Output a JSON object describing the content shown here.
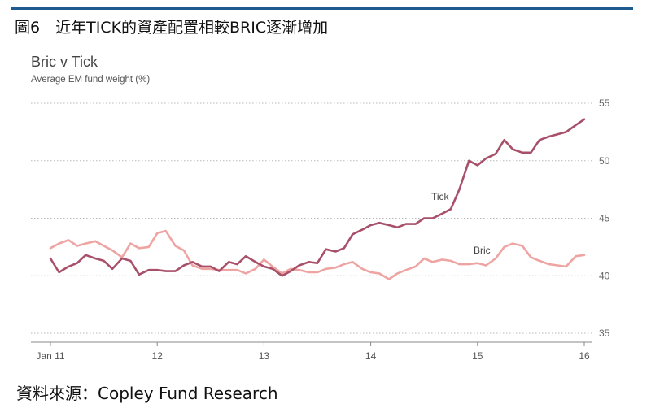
{
  "figure_title": "圖6　近年TICK的資產配置相較BRIC逐漸增加",
  "source": "資料來源：Copley Fund Research",
  "colors": {
    "rule": "#1f5a8f",
    "tick": "#a8506a",
    "bric": "#eea4a2",
    "grid": "#b8b8b8"
  },
  "chart_data": {
    "type": "line",
    "title": "Bric v Tick",
    "subtitle": "Average EM fund weight (%)",
    "xlabel": "",
    "ylabel": "",
    "x_ticks": [
      "Jan 11",
      "12",
      "13",
      "14",
      "15",
      "16"
    ],
    "y_ticks": [
      35,
      40,
      45,
      50,
      55
    ],
    "ylim": [
      35,
      55
    ],
    "xlim": [
      2011.0,
      2016.0
    ],
    "grid": true,
    "y_axis_position": "right",
    "series": [
      {
        "name": "Tick",
        "x": [
          2011.0,
          2011.08,
          2011.17,
          2011.25,
          2011.33,
          2011.42,
          2011.5,
          2011.58,
          2011.67,
          2011.75,
          2011.83,
          2011.92,
          2012.0,
          2012.08,
          2012.17,
          2012.25,
          2012.33,
          2012.42,
          2012.5,
          2012.58,
          2012.67,
          2012.75,
          2012.83,
          2012.92,
          2013.0,
          2013.08,
          2013.17,
          2013.25,
          2013.33,
          2013.42,
          2013.5,
          2013.58,
          2013.67,
          2013.75,
          2013.83,
          2013.92,
          2014.0,
          2014.08,
          2014.17,
          2014.25,
          2014.33,
          2014.42,
          2014.5,
          2014.58,
          2014.67,
          2014.75,
          2014.83,
          2014.92,
          2015.0,
          2015.08,
          2015.17,
          2015.25,
          2015.33,
          2015.42,
          2015.5,
          2015.58,
          2015.67,
          2015.75,
          2015.83,
          2015.92,
          2016.0
        ],
        "values": [
          41.5,
          40.3,
          40.8,
          41.1,
          41.8,
          41.5,
          41.3,
          40.6,
          41.5,
          41.3,
          40.1,
          40.5,
          40.5,
          40.4,
          40.4,
          40.9,
          41.2,
          40.8,
          40.8,
          40.4,
          41.2,
          41.0,
          41.7,
          41.2,
          40.8,
          40.6,
          40.0,
          40.4,
          40.9,
          41.2,
          41.1,
          42.3,
          42.1,
          42.4,
          43.6,
          44.0,
          44.4,
          44.6,
          44.4,
          44.2,
          44.5,
          44.5,
          45.0,
          45.0,
          45.4,
          45.8,
          47.5,
          50.0,
          49.6,
          50.2,
          50.6,
          51.8,
          51.0,
          50.7,
          50.7,
          51.8,
          52.1,
          52.3,
          52.5,
          53.1,
          53.6
        ]
      },
      {
        "name": "Bric",
        "x": [
          2011.0,
          2011.08,
          2011.17,
          2011.25,
          2011.33,
          2011.42,
          2011.5,
          2011.58,
          2011.67,
          2011.75,
          2011.83,
          2011.92,
          2012.0,
          2012.08,
          2012.17,
          2012.25,
          2012.33,
          2012.42,
          2012.5,
          2012.58,
          2012.67,
          2012.75,
          2012.83,
          2012.92,
          2013.0,
          2013.08,
          2013.17,
          2013.25,
          2013.33,
          2013.42,
          2013.5,
          2013.58,
          2013.67,
          2013.75,
          2013.83,
          2013.92,
          2014.0,
          2014.08,
          2014.17,
          2014.25,
          2014.33,
          2014.42,
          2014.5,
          2014.58,
          2014.67,
          2014.75,
          2014.83,
          2014.92,
          2015.0,
          2015.08,
          2015.17,
          2015.25,
          2015.33,
          2015.42,
          2015.5,
          2015.58,
          2015.67,
          2015.75,
          2015.83,
          2015.92,
          2016.0
        ],
        "values": [
          42.4,
          42.8,
          43.1,
          42.6,
          42.8,
          43.0,
          42.6,
          42.2,
          41.6,
          42.8,
          42.4,
          42.5,
          43.7,
          43.9,
          42.6,
          42.2,
          40.9,
          40.6,
          40.6,
          40.5,
          40.5,
          40.5,
          40.2,
          40.6,
          41.4,
          40.8,
          40.2,
          40.6,
          40.5,
          40.3,
          40.3,
          40.6,
          40.7,
          41.0,
          41.2,
          40.6,
          40.3,
          40.2,
          39.7,
          40.2,
          40.5,
          40.8,
          41.5,
          41.2,
          41.4,
          41.3,
          41.0,
          41.0,
          41.1,
          40.9,
          41.5,
          42.5,
          42.8,
          42.6,
          41.6,
          41.3,
          41.0,
          40.9,
          40.8,
          41.7,
          41.8
        ]
      }
    ],
    "annotations": [
      "Tick",
      "Bric"
    ]
  }
}
